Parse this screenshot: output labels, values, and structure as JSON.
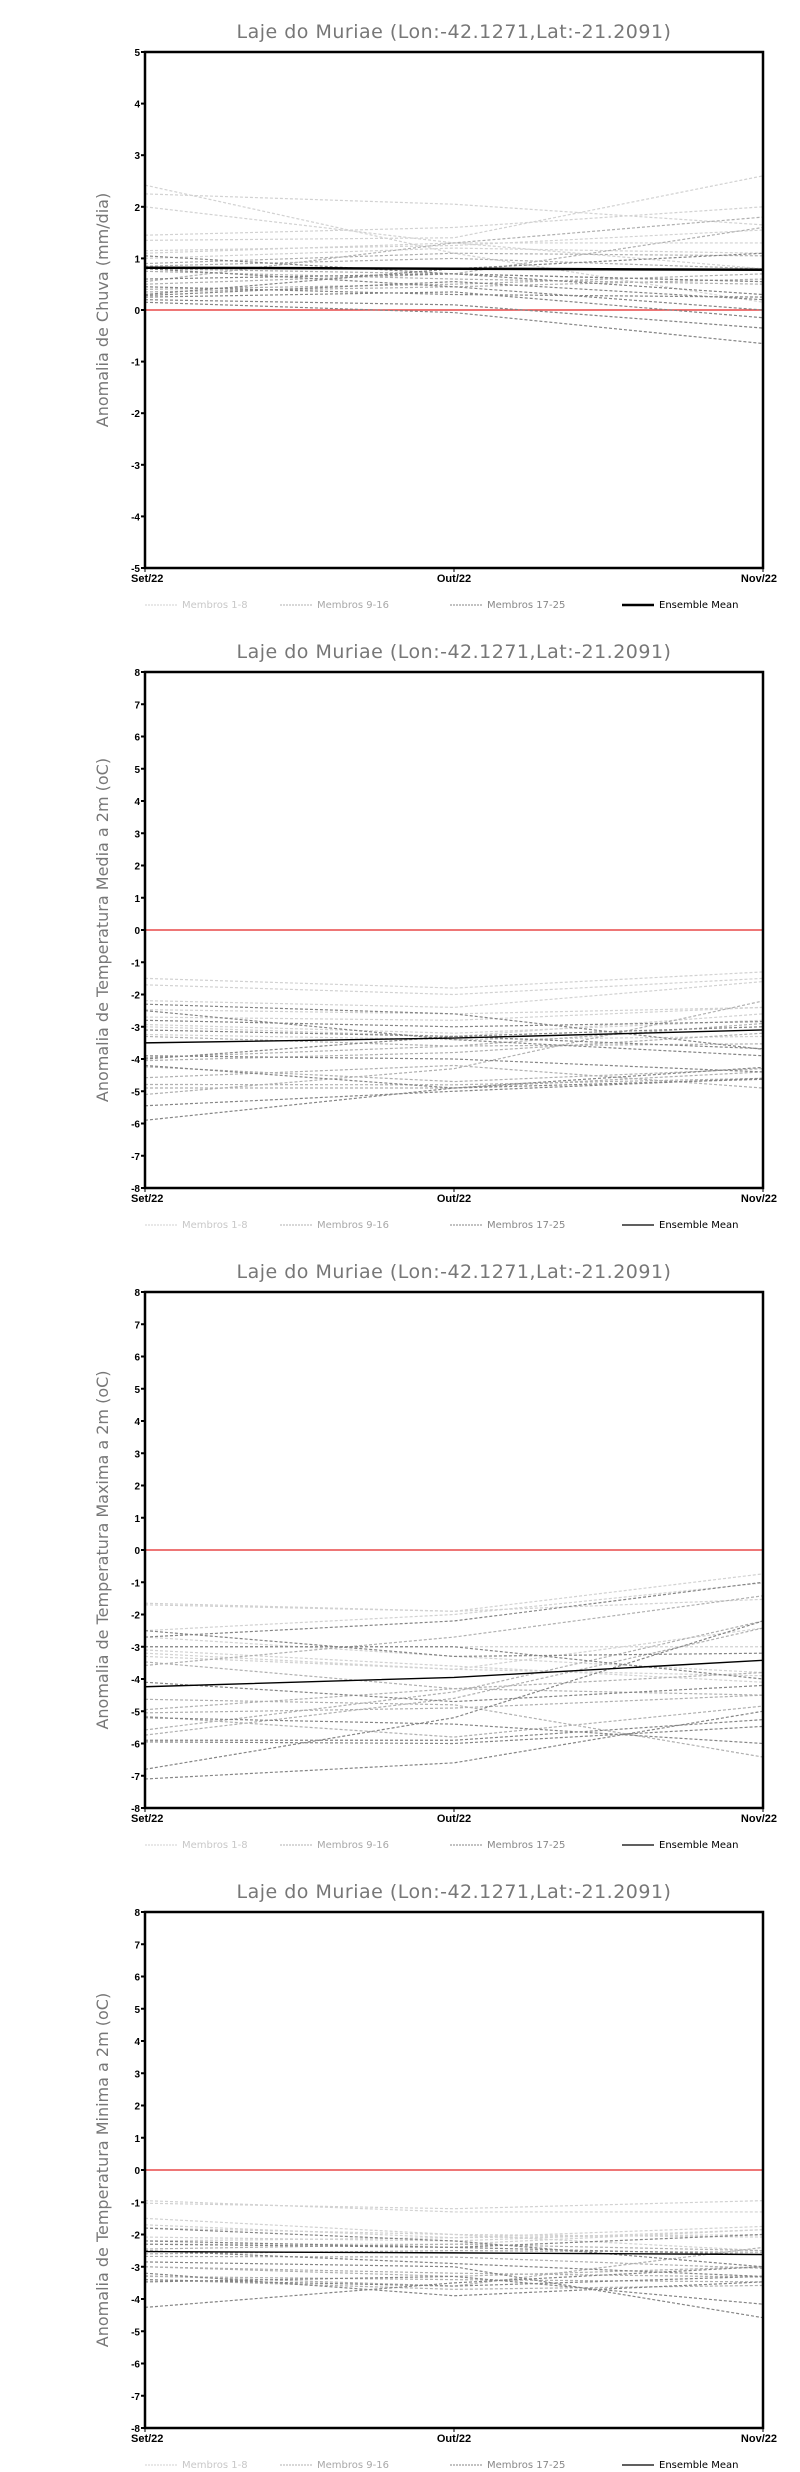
{
  "legend": {
    "members_1_8": "Membros 1-8",
    "members_9_16": "Membros 9-16",
    "members_17_25": "Membros 17-25",
    "ensemble_mean": "Ensemble Mean"
  },
  "colors": {
    "members_1_8": "#d2d2d2",
    "members_9_16": "#b0b0b0",
    "members_17_25": "#858585",
    "mean": "#000000",
    "zero": "#e84848"
  },
  "chart_data": [
    {
      "type": "line",
      "title": "Laje do Muriae (Lon:-42.1271,Lat:-21.2091)",
      "ylabel": "Anomalia de Chuva (mm/dia)",
      "categories": [
        "Set/22",
        "Out/22",
        "Nov/22"
      ],
      "ylim": [
        -5,
        5
      ],
      "yticks": [
        -5,
        -4,
        -3,
        -2,
        -1,
        0,
        1,
        2,
        3,
        4,
        5
      ],
      "mean_thick": true,
      "members": [
        [
          2.42,
          1.1,
          0.15
        ],
        [
          2.25,
          2.05,
          1.65
        ],
        [
          2.0,
          1.3,
          0.8
        ],
        [
          1.45,
          1.6,
          2.0
        ],
        [
          1.35,
          1.4,
          2.6
        ],
        [
          1.15,
          1.25,
          1.55
        ],
        [
          1.1,
          1.3,
          1.3
        ],
        [
          1.0,
          1.2,
          1.1
        ],
        [
          0.9,
          1.1,
          1.05
        ],
        [
          0.85,
          1.0,
          0.8
        ],
        [
          0.8,
          0.7,
          0.55
        ],
        [
          0.75,
          0.6,
          0.5
        ],
        [
          0.55,
          1.3,
          1.8
        ],
        [
          0.5,
          0.7,
          1.6
        ],
        [
          0.4,
          0.5,
          0.7
        ],
        [
          0.35,
          0.45,
          0.6
        ],
        [
          0.3,
          0.8,
          1.1
        ],
        [
          0.28,
          0.55,
          0.2
        ],
        [
          0.25,
          0.35,
          -0.15
        ],
        [
          0.2,
          0.1,
          -0.35
        ],
        [
          0.15,
          -0.05,
          -0.65
        ],
        [
          0.45,
          0.3,
          0.25
        ],
        [
          0.6,
          0.7,
          0.55
        ],
        [
          1.05,
          0.7,
          0.3
        ],
        [
          0.8,
          0.45,
          0.0
        ]
      ],
      "mean": [
        0.82,
        0.8,
        0.78
      ]
    },
    {
      "type": "line",
      "title": "Laje do Muriae (Lon:-42.1271,Lat:-21.2091)",
      "ylabel": "Anomalia de Temperatura Media a 2m (oC)",
      "categories": [
        "Set/22",
        "Out/22",
        "Nov/22"
      ],
      "ylim": [
        -8,
        8
      ],
      "yticks": [
        -8,
        -7,
        -6,
        -5,
        -4,
        -3,
        -2,
        -1,
        0,
        1,
        2,
        3,
        4,
        5,
        6,
        7,
        8
      ],
      "mean_thick": false,
      "members": [
        [
          -1.5,
          -1.8,
          -1.3
        ],
        [
          -1.7,
          -2.0,
          -1.5
        ],
        [
          -2.19,
          -2.4,
          -1.6
        ],
        [
          -2.47,
          -2.6,
          -2.4
        ],
        [
          -2.7,
          -2.8,
          -2.4
        ],
        [
          -2.93,
          -3.2,
          -2.8
        ],
        [
          -3.0,
          -3.3,
          -2.6
        ],
        [
          -3.24,
          -3.4,
          -3.3
        ],
        [
          -3.3,
          -3.6,
          -3.53
        ],
        [
          -3.96,
          -3.6,
          -2.9
        ],
        [
          -4.05,
          -3.8,
          -3.2
        ],
        [
          -4.24,
          -4.7,
          -4.3
        ],
        [
          -4.58,
          -4.2,
          -4.9
        ],
        [
          -4.79,
          -4.8,
          -4.6
        ],
        [
          -4.9,
          -4.9,
          -4.4
        ],
        [
          -5.1,
          -4.3,
          -2.2
        ],
        [
          -5.45,
          -5.0,
          -4.6
        ],
        [
          -5.9,
          -4.9,
          -4.26
        ],
        [
          -2.3,
          -2.6,
          -3.7
        ],
        [
          -3.9,
          -4.0,
          -4.4
        ],
        [
          -4.0,
          -3.3,
          -3.0
        ],
        [
          -2.5,
          -3.4,
          -3.9
        ],
        [
          -3.1,
          -3.3,
          -3.68
        ],
        [
          -4.2,
          -4.9,
          -4.63
        ],
        [
          -2.8,
          -3.0,
          -2.84
        ]
      ],
      "mean": [
        -3.5,
        -3.35,
        -3.1
      ]
    },
    {
      "type": "line",
      "title": "Laje do Muriae (Lon:-42.1271,Lat:-21.2091)",
      "ylabel": "Anomalia de Temperatura Maxima a 2m (oC)",
      "categories": [
        "Set/22",
        "Out/22",
        "Nov/22"
      ],
      "ylim": [
        -8,
        8
      ],
      "yticks": [
        -8,
        -7,
        -6,
        -5,
        -4,
        -3,
        -2,
        -1,
        0,
        1,
        2,
        3,
        4,
        5,
        6,
        7,
        8
      ],
      "mean_thick": false,
      "members": [
        [
          -1.65,
          -1.9,
          -1.53
        ],
        [
          -1.7,
          -1.9,
          -0.74
        ],
        [
          -2.5,
          -2.0,
          -1.02
        ],
        [
          -2.7,
          -3.3,
          -3.8
        ],
        [
          -3.0,
          -3.0,
          -3.0
        ],
        [
          -3.1,
          -3.6,
          -4.1
        ],
        [
          -3.2,
          -3.7,
          -3.9
        ],
        [
          -3.3,
          -3.7,
          -2.42
        ],
        [
          -3.47,
          -4.3,
          -3.8
        ],
        [
          -3.58,
          -2.7,
          -1.42
        ],
        [
          -4.63,
          -4.8,
          -6.42
        ],
        [
          -4.95,
          -4.3,
          -4.5
        ],
        [
          -5.05,
          -4.9,
          -4.5
        ],
        [
          -5.16,
          -5.8,
          -4.84
        ],
        [
          -5.58,
          -4.4,
          -2.2
        ],
        [
          -5.74,
          -4.6,
          -2.42
        ],
        [
          -5.9,
          -5.9,
          -5.26
        ],
        [
          -5.95,
          -6.0,
          -5.47
        ],
        [
          -6.8,
          -5.2,
          -2.2
        ],
        [
          -7.1,
          -6.6,
          -5.0
        ],
        [
          -2.5,
          -3.3,
          -3.2
        ],
        [
          -3.0,
          -3.0,
          -4.0
        ],
        [
          -2.7,
          -2.2,
          -1.0
        ],
        [
          -4.1,
          -4.7,
          -4.2
        ],
        [
          -5.2,
          -5.4,
          -6.0
        ]
      ],
      "mean": [
        -4.24,
        -3.95,
        -3.42
      ]
    },
    {
      "type": "line",
      "title": "Laje do Muriae (Lon:-42.1271,Lat:-21.2091)",
      "ylabel": "Anomalia de Temperatura Minima a 2m (oC)",
      "categories": [
        "Set/22",
        "Out/22",
        "Nov/22"
      ],
      "ylim": [
        -8,
        8
      ],
      "yticks": [
        -8,
        -7,
        -6,
        -5,
        -4,
        -3,
        -2,
        -1,
        0,
        1,
        2,
        3,
        4,
        5,
        6,
        7,
        8
      ],
      "mean_thick": false,
      "members": [
        [
          -0.95,
          -1.3,
          -1.3
        ],
        [
          -1.03,
          -1.2,
          -0.95
        ],
        [
          -1.5,
          -2.0,
          -2.5
        ],
        [
          -1.7,
          -2.1,
          -1.75
        ],
        [
          -1.8,
          -2.0,
          -2.08
        ],
        [
          -2.08,
          -2.2,
          -1.85
        ],
        [
          -2.2,
          -2.1,
          -2.0
        ],
        [
          -2.3,
          -2.3,
          -1.85
        ],
        [
          -2.45,
          -2.3,
          -2.5
        ],
        [
          -2.6,
          -2.5,
          -2.55
        ],
        [
          -2.68,
          -2.7,
          -3.05
        ],
        [
          -3.0,
          -3.2,
          -3.32
        ],
        [
          -3.0,
          -3.3,
          -3.0
        ],
        [
          -3.28,
          -3.6,
          -2.4
        ],
        [
          -3.3,
          -3.4,
          -3.47
        ],
        [
          -3.4,
          -3.7,
          -3.58
        ],
        [
          -3.47,
          -3.3,
          -4.16
        ],
        [
          -4.26,
          -3.5,
          -3.0
        ],
        [
          -2.85,
          -3.0,
          -4.58
        ],
        [
          -3.2,
          -3.9,
          -3.47
        ],
        [
          -2.3,
          -2.4,
          -2.0
        ],
        [
          -2.5,
          -2.9,
          -3.3
        ],
        [
          -1.8,
          -2.2,
          -3.0
        ],
        [
          -3.4,
          -3.6,
          -3.3
        ],
        [
          -2.2,
          -2.4,
          -2.62
        ]
      ],
      "mean": [
        -2.53,
        -2.57,
        -2.62
      ]
    }
  ]
}
